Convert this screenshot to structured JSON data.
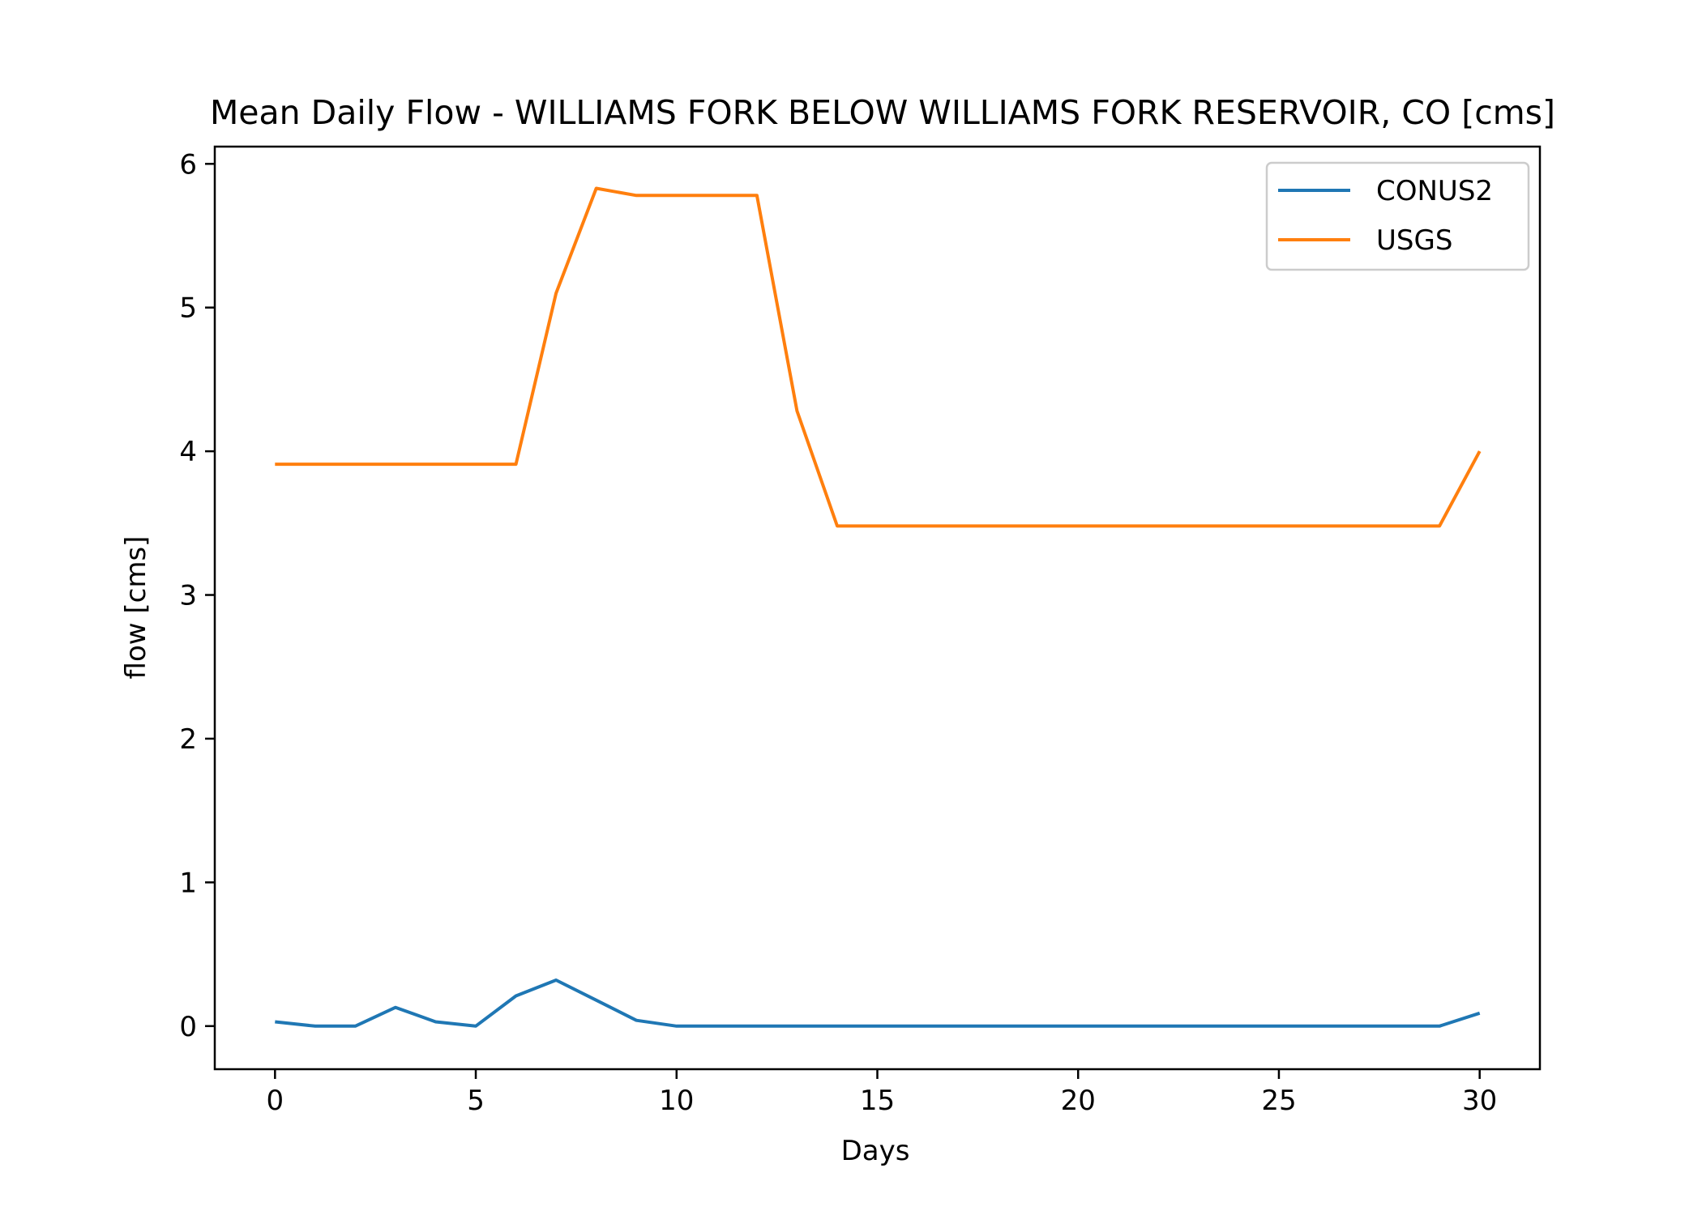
{
  "chart_data": {
    "type": "line",
    "title": "Mean Daily Flow - WILLIAMS FORK BELOW WILLIAMS FORK RESERVOIR, CO [cms]",
    "xlabel": "Days",
    "ylabel": "flow [cms]",
    "xlim": [
      -1.5,
      31.5
    ],
    "ylim": [
      -0.3,
      6.12
    ],
    "xticks": [
      0,
      5,
      10,
      15,
      20,
      25,
      30
    ],
    "yticks": [
      0,
      1,
      2,
      3,
      4,
      5,
      6
    ],
    "grid": false,
    "legend_position": "top-right",
    "x": [
      0,
      1,
      2,
      3,
      4,
      5,
      6,
      7,
      8,
      9,
      10,
      11,
      12,
      13,
      14,
      15,
      16,
      17,
      18,
      19,
      20,
      21,
      22,
      23,
      24,
      25,
      26,
      27,
      28,
      29,
      30
    ],
    "series": [
      {
        "name": "CONUS2",
        "color": "#1f77b4",
        "values": [
          0.03,
          0.0,
          0.0,
          0.13,
          0.03,
          0.0,
          0.21,
          0.32,
          0.18,
          0.04,
          0.0,
          0.0,
          0.0,
          0.0,
          0.0,
          0.0,
          0.0,
          0.0,
          0.0,
          0.0,
          0.0,
          0.0,
          0.0,
          0.0,
          0.0,
          0.0,
          0.0,
          0.0,
          0.0,
          0.0,
          0.09
        ]
      },
      {
        "name": "USGS",
        "color": "#ff7f0e",
        "values": [
          3.91,
          3.91,
          3.91,
          3.91,
          3.91,
          3.91,
          3.91,
          5.1,
          5.83,
          5.78,
          5.78,
          5.78,
          5.78,
          4.28,
          3.48,
          3.48,
          3.48,
          3.48,
          3.48,
          3.48,
          3.48,
          3.48,
          3.48,
          3.48,
          3.48,
          3.48,
          3.48,
          3.48,
          3.48,
          3.48,
          4.0
        ]
      }
    ]
  }
}
